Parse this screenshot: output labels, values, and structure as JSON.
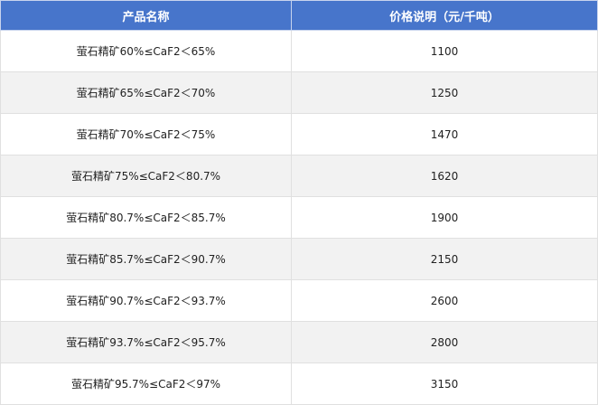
{
  "table": {
    "headers": [
      "产品名称",
      "价格说明（元/千吨）"
    ],
    "rows": [
      {
        "name": "萤石精矿60%≤CaF2＜65%",
        "price": "1100"
      },
      {
        "name": "萤石精矿65%≤CaF2＜70%",
        "price": "1250"
      },
      {
        "name": "萤石精矿70%≤CaF2＜75%",
        "price": "1470"
      },
      {
        "name": "萤石精矿75%≤CaF2＜80.7%",
        "price": "1620"
      },
      {
        "name": "萤石精矿80.7%≤CaF2＜85.7%",
        "price": "1900"
      },
      {
        "name": "萤石精矿85.7%≤CaF2＜90.7%",
        "price": "2150"
      },
      {
        "name": "萤石精矿90.7%≤CaF2＜93.7%",
        "price": "2600"
      },
      {
        "name": "萤石精矿93.7%≤CaF2＜95.7%",
        "price": "2800"
      },
      {
        "name": "萤石精矿95.7%≤CaF2＜97%",
        "price": "3150"
      }
    ]
  },
  "colors": {
    "header_bg": "#4775cb",
    "alt_row_bg": "#f2f2f2"
  }
}
